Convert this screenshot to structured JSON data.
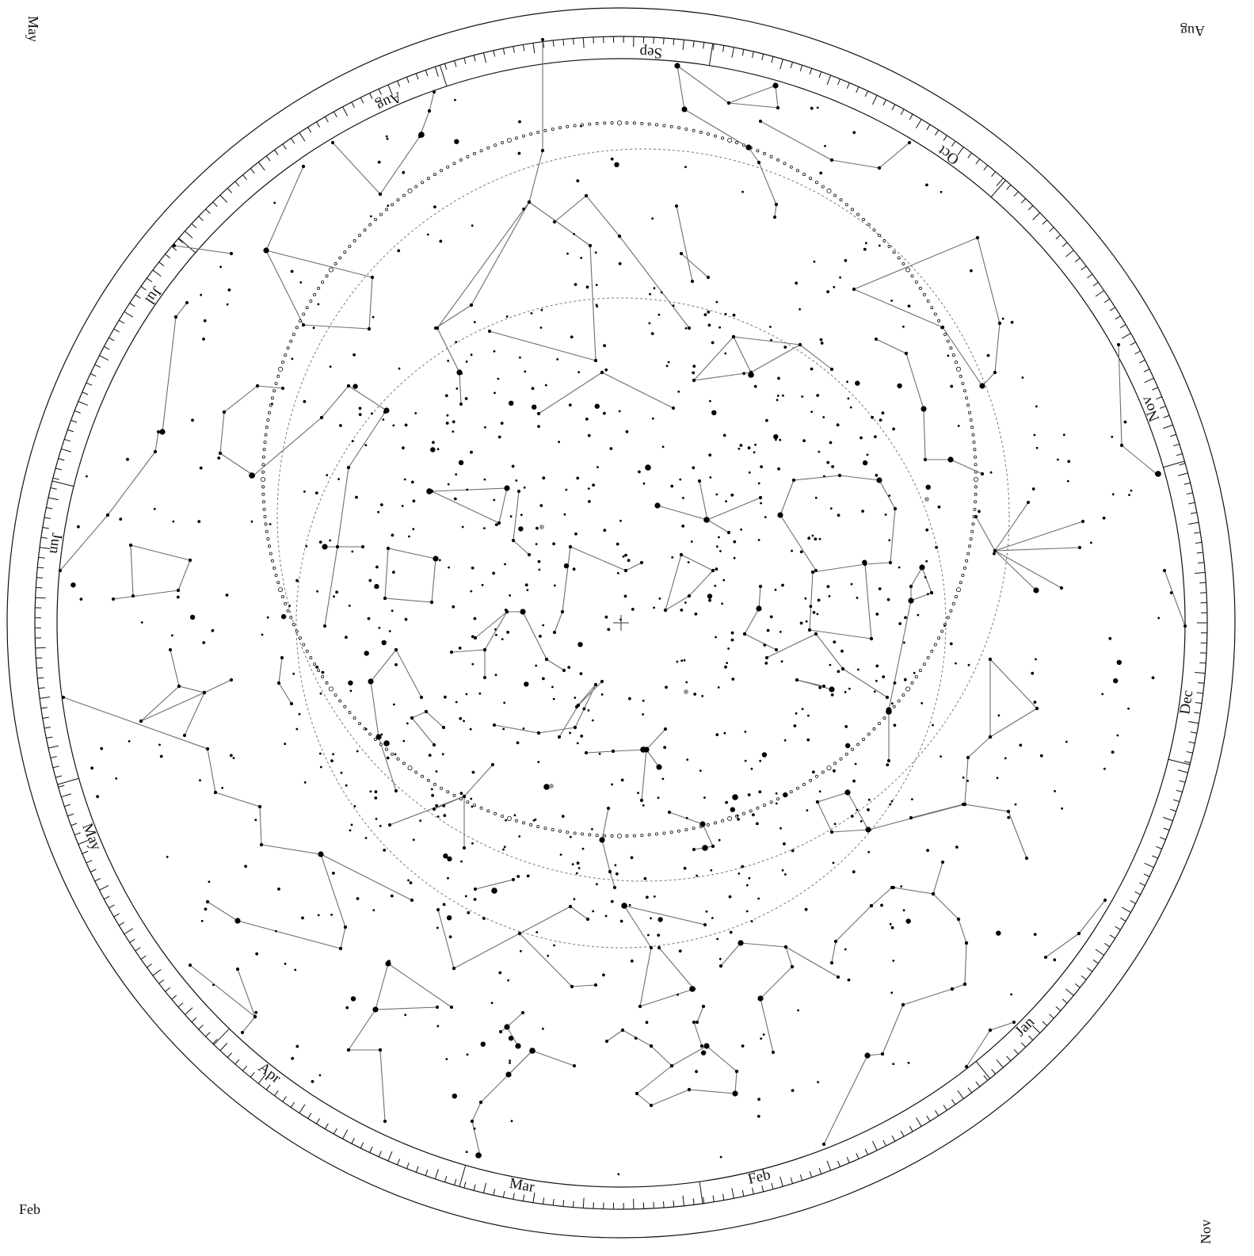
{
  "corners": {
    "top_left": "May",
    "top_right": "Aug",
    "bottom_left": "Feb",
    "bottom_right": "Nov"
  },
  "month_labels": [
    "Jan",
    "Feb",
    "Mar",
    "Apr",
    "May",
    "Jun",
    "Jul",
    "Aug",
    "Sep",
    "Oct",
    "Nov",
    "Dec"
  ],
  "colors": {
    "background": "#ffffff",
    "ink": "#111111",
    "constellation_lines": "#6e6e6e",
    "guide_circles": "#777777"
  }
}
